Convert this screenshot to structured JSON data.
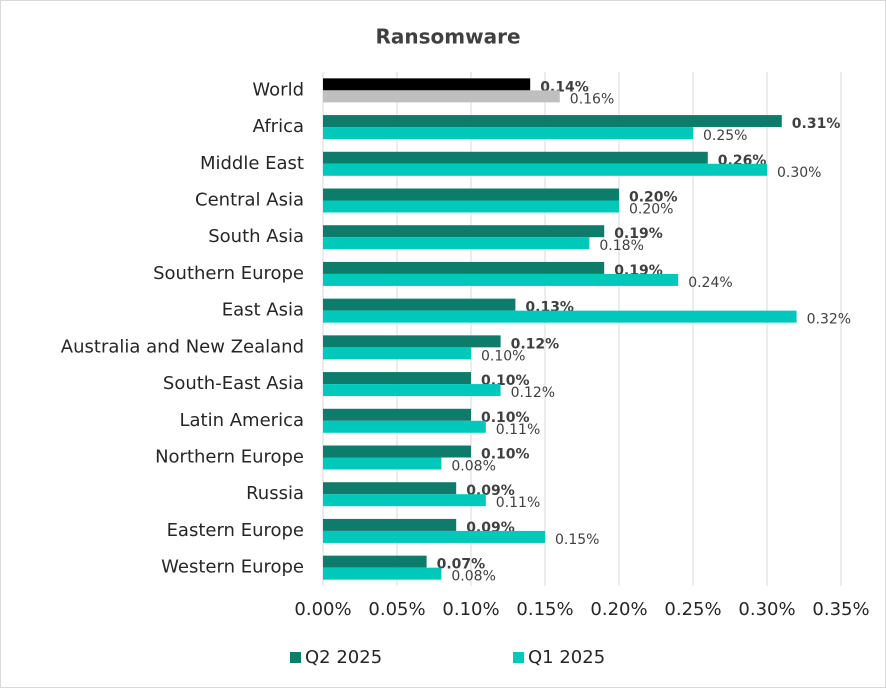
{
  "chart_data": {
    "type": "hbar",
    "title": "Ransomware",
    "categories": [
      "World",
      "Africa",
      "Middle East",
      "Central Asia",
      "South Asia",
      "Southern Europe",
      "East Asia",
      "Australia and New Zealand",
      "South-East Asia",
      "Latin America",
      "Northern Europe",
      "Russia",
      "Eastern Europe",
      "Western Europe"
    ],
    "series": [
      {
        "name": "Q2 2025",
        "color": "#0e7c6b",
        "colors": [
          "#000000",
          "#0e7c6b",
          "#0e7c6b",
          "#0e7c6b",
          "#0e7c6b",
          "#0e7c6b",
          "#0e7c6b",
          "#0e7c6b",
          "#0e7c6b",
          "#0e7c6b",
          "#0e7c6b",
          "#0e7c6b",
          "#0e7c6b",
          "#0e7c6b"
        ],
        "values": [
          0.14,
          0.31,
          0.26,
          0.2,
          0.19,
          0.19,
          0.13,
          0.12,
          0.1,
          0.1,
          0.1,
          0.09,
          0.09,
          0.07
        ],
        "value_labels": [
          "0.14%",
          "0.31%",
          "0.26%",
          "0.20%",
          "0.19%",
          "0.19%",
          "0.13%",
          "0.12%",
          "0.10%",
          "0.10%",
          "0.10%",
          "0.09%",
          "0.09%",
          "0.07%"
        ]
      },
      {
        "name": "Q1 2025",
        "color": "#00c9bc",
        "colors": [
          "#bfbfbf",
          "#00c9bc",
          "#00c9bc",
          "#00c9bc",
          "#00c9bc",
          "#00c9bc",
          "#00c9bc",
          "#00c9bc",
          "#00c9bc",
          "#00c9bc",
          "#00c9bc",
          "#00c9bc",
          "#00c9bc",
          "#00c9bc"
        ],
        "values": [
          0.16,
          0.25,
          0.3,
          0.2,
          0.18,
          0.24,
          0.32,
          0.1,
          0.12,
          0.11,
          0.08,
          0.11,
          0.15,
          0.08
        ],
        "value_labels": [
          "0.16%",
          "0.25%",
          "0.30%",
          "0.20%",
          "0.18%",
          "0.24%",
          "0.32%",
          "0.10%",
          "0.12%",
          "0.11%",
          "0.08%",
          "0.11%",
          "0.15%",
          "0.08%"
        ]
      }
    ],
    "xlim": [
      0,
      0.35
    ],
    "xticks": [
      {
        "value": 0,
        "label": "0.00%"
      },
      {
        "value": 0.05,
        "label": "0.05%"
      },
      {
        "value": 0.1,
        "label": "0.10%"
      },
      {
        "value": 0.15,
        "label": "0.15%"
      },
      {
        "value": 0.2,
        "label": "0.20%"
      },
      {
        "value": 0.25,
        "label": "0.25%"
      },
      {
        "value": 0.3,
        "label": "0.30%"
      },
      {
        "value": 0.35,
        "label": "0.35%"
      }
    ],
    "grid": true,
    "legend": "bottom"
  }
}
